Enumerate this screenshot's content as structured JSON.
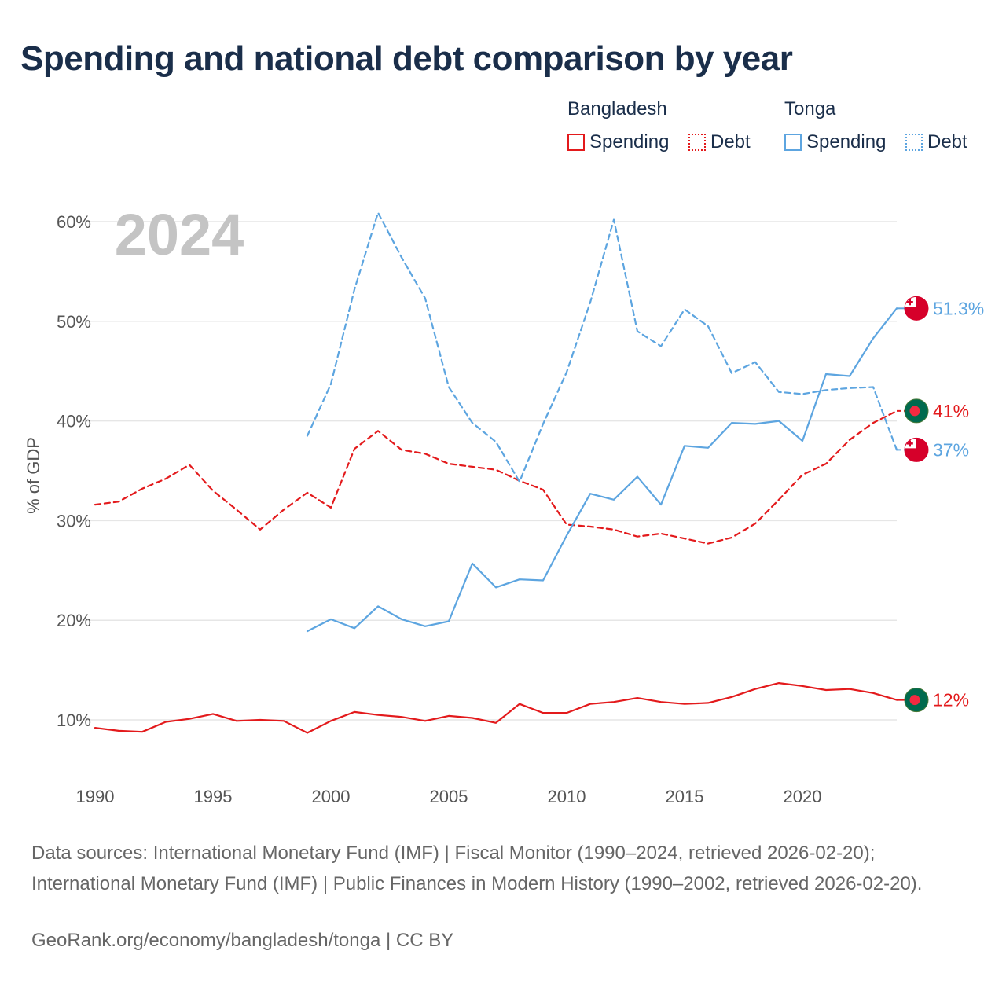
{
  "title": "Spending and national debt comparison by year",
  "legend": {
    "groups": [
      {
        "name": "Bangladesh",
        "spending_label": "Spending",
        "debt_label": "Debt",
        "color": "#e31a1c"
      },
      {
        "name": "Tonga",
        "spending_label": "Spending",
        "debt_label": "Debt",
        "color": "#5da5e0"
      }
    ]
  },
  "sources": "Data sources: International Monetary Fund (IMF) | Fiscal Monitor (1990–2024, retrieved 2026-02-20); International Monetary Fund (IMF) | Public Finances in Modern History (1990–2002, retrieved 2026-02-20).",
  "attribution": "GeoRank.org/economy/bangladesh/tonga | CC BY",
  "chart_data": {
    "type": "line",
    "title": "Spending and national debt comparison by year",
    "year_label": "2024",
    "ylabel": "% of GDP",
    "xlabel": "",
    "ylim": [
      5,
      63
    ],
    "xlim": [
      1990,
      2024
    ],
    "x_ticks": [
      1990,
      1995,
      2000,
      2005,
      2010,
      2015,
      2020
    ],
    "x_tick_labels": [
      "1990",
      "1995",
      "2000",
      "2005",
      "2010",
      "2015",
      "2020"
    ],
    "y_ticks": [
      10,
      20,
      30,
      40,
      50,
      60
    ],
    "y_tick_labels": [
      "10%",
      "20%",
      "30%",
      "40%",
      "50%",
      "60%"
    ],
    "grid": true,
    "series": [
      {
        "name": "Bangladesh Spending",
        "country": "Bangladesh",
        "metric": "Spending",
        "color": "#e31a1c",
        "dashed": false,
        "end_label": "12%",
        "flag": "bangladesh",
        "x": [
          1990,
          1991,
          1992,
          1993,
          1994,
          1995,
          1996,
          1997,
          1998,
          1999,
          2000,
          2001,
          2002,
          2003,
          2004,
          2005,
          2006,
          2007,
          2008,
          2009,
          2010,
          2011,
          2012,
          2013,
          2014,
          2015,
          2016,
          2017,
          2018,
          2019,
          2020,
          2021,
          2022,
          2023,
          2024
        ],
        "values": [
          9.2,
          8.9,
          8.8,
          9.8,
          10.1,
          10.6,
          9.9,
          10.0,
          9.9,
          8.7,
          9.9,
          10.8,
          10.5,
          10.3,
          9.9,
          10.4,
          10.2,
          9.7,
          11.6,
          10.7,
          10.7,
          11.6,
          11.8,
          12.2,
          11.8,
          11.6,
          11.7,
          12.3,
          13.1,
          13.7,
          13.4,
          13.0,
          13.1,
          12.7,
          12.0
        ]
      },
      {
        "name": "Bangladesh Debt",
        "country": "Bangladesh",
        "metric": "Debt",
        "color": "#e31a1c",
        "dashed": true,
        "end_label": "41%",
        "flag": "bangladesh",
        "x": [
          1990,
          1991,
          1992,
          1993,
          1994,
          1995,
          1996,
          1997,
          1998,
          1999,
          2000,
          2001,
          2002,
          2003,
          2004,
          2005,
          2006,
          2007,
          2008,
          2009,
          2010,
          2011,
          2012,
          2013,
          2014,
          2015,
          2016,
          2017,
          2018,
          2019,
          2020,
          2021,
          2022,
          2023,
          2024
        ],
        "values": [
          31.6,
          31.9,
          33.2,
          34.2,
          35.6,
          33.0,
          31.1,
          29.1,
          31.1,
          32.8,
          31.3,
          37.2,
          39.0,
          37.1,
          36.7,
          35.7,
          35.4,
          35.1,
          34.0,
          33.1,
          29.6,
          29.4,
          29.1,
          28.4,
          28.7,
          28.2,
          27.7,
          28.3,
          29.7,
          32.1,
          34.6,
          35.7,
          38.1,
          39.8,
          41.0
        ]
      },
      {
        "name": "Tonga Spending",
        "country": "Tonga",
        "metric": "Spending",
        "color": "#5da5e0",
        "dashed": false,
        "end_label": "51.3%",
        "flag": "tonga",
        "x": [
          1999,
          2000,
          2001,
          2002,
          2003,
          2004,
          2005,
          2006,
          2007,
          2008,
          2009,
          2010,
          2011,
          2012,
          2013,
          2014,
          2015,
          2016,
          2017,
          2018,
          2019,
          2020,
          2021,
          2022,
          2023,
          2024
        ],
        "values": [
          18.9,
          20.1,
          19.2,
          21.4,
          20.1,
          19.4,
          19.9,
          25.7,
          23.3,
          24.1,
          24.0,
          28.5,
          32.7,
          32.1,
          34.4,
          31.6,
          37.5,
          37.3,
          39.8,
          39.7,
          40.0,
          38.0,
          44.7,
          44.5,
          48.3,
          51.3
        ]
      },
      {
        "name": "Tonga Debt",
        "country": "Tonga",
        "metric": "Debt",
        "color": "#5da5e0",
        "dashed": true,
        "end_label": "37%",
        "flag": "tonga",
        "x": [
          1999,
          2000,
          2001,
          2002,
          2003,
          2004,
          2005,
          2006,
          2007,
          2008,
          2009,
          2010,
          2011,
          2012,
          2013,
          2014,
          2015,
          2016,
          2017,
          2018,
          2019,
          2020,
          2021,
          2022,
          2023,
          2024
        ],
        "values": [
          38.5,
          43.7,
          53.2,
          60.9,
          56.4,
          52.3,
          43.4,
          39.8,
          37.9,
          33.9,
          39.7,
          44.9,
          51.9,
          60.2,
          49.0,
          47.5,
          51.2,
          49.5,
          44.8,
          45.9,
          42.9,
          42.7,
          43.1,
          43.3,
          43.4,
          37.1
        ]
      }
    ]
  }
}
